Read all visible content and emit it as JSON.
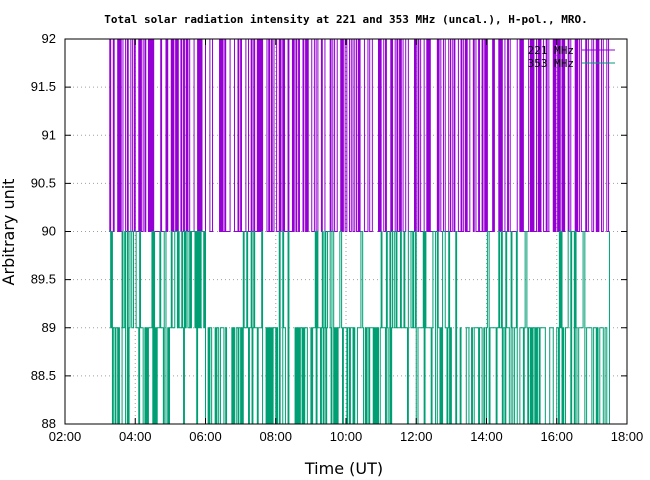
{
  "chart_data": {
    "type": "line",
    "title": "Total solar radiation intensity at 221 and 353 MHz (uncal.), H-pol., MRO.",
    "xlabel": "Time (UT)",
    "ylabel": "Arbitrary unit",
    "xlim": [
      "02:00",
      "18:00"
    ],
    "ylim": [
      88,
      92
    ],
    "x_ticks": [
      "02:00",
      "04:00",
      "06:00",
      "08:00",
      "10:00",
      "12:00",
      "14:00",
      "16:00",
      "18:00"
    ],
    "y_ticks": [
      "88",
      "88.5",
      "89",
      "89.5",
      "90",
      "90.5",
      "91",
      "91.5",
      "92"
    ],
    "grid": true,
    "legend_position": "top-right",
    "series": [
      {
        "name": "221 MHz",
        "color": "#9400d3",
        "time_range": [
          "03:15",
          "17:30"
        ],
        "baseline": 90,
        "levels": [
          90,
          91,
          92
        ],
        "x": [
          "03:15",
          "04:00",
          "05:00",
          "06:00",
          "07:00",
          "08:00",
          "09:00",
          "10:00",
          "11:00",
          "12:00",
          "13:00",
          "14:00",
          "15:00",
          "16:00",
          "17:00",
          "17:30"
        ],
        "y": [
          91,
          91,
          92,
          91,
          92,
          91,
          92,
          92,
          91,
          92,
          91,
          92,
          92,
          91,
          91,
          91
        ]
      },
      {
        "name": "353 MHz",
        "color": "#009e73",
        "time_range": [
          "03:15",
          "17:30"
        ],
        "baseline": 89,
        "levels": [
          88,
          89,
          90
        ],
        "x": [
          "03:15",
          "04:00",
          "05:00",
          "06:00",
          "07:00",
          "08:00",
          "09:00",
          "10:00",
          "11:00",
          "12:00",
          "13:00",
          "14:00",
          "15:00",
          "16:00",
          "17:00",
          "17:30"
        ],
        "y": [
          89,
          89,
          90,
          88,
          89,
          88,
          89,
          88,
          90,
          89,
          88,
          89,
          88,
          89,
          88,
          89
        ]
      }
    ]
  }
}
